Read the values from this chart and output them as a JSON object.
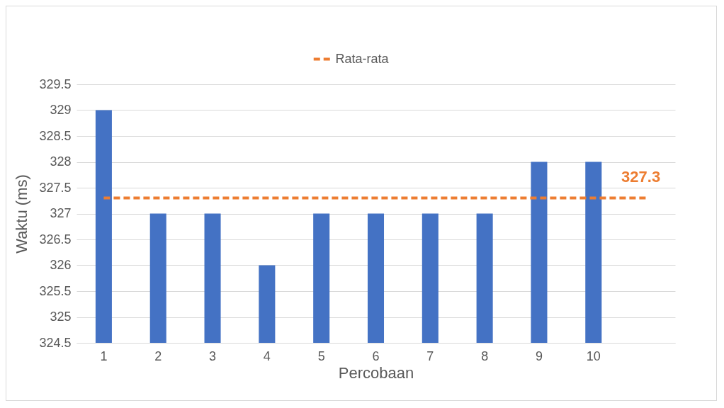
{
  "chart_data": {
    "type": "bar",
    "xlabel": "Percobaan",
    "ylabel": "Waktu (ms)",
    "categories": [
      "1",
      "2",
      "3",
      "4",
      "5",
      "6",
      "7",
      "8",
      "9",
      "10",
      null
    ],
    "series": [
      {
        "color": "#4472c4",
        "values": [
          329,
          327,
          327,
          326,
          327,
          327,
          327,
          327,
          328,
          328,
          null
        ]
      },
      {
        "type": "line",
        "name": "Rata-rata",
        "color": "#ed7d31",
        "line_style": "dashed",
        "values": [
          327.3,
          327.3,
          327.3,
          327.3,
          327.3,
          327.3,
          327.3,
          327.3,
          327.3,
          327.3,
          327.3
        ],
        "value_labels": [
          null,
          null,
          null,
          null,
          null,
          null,
          null,
          null,
          null,
          null,
          "327.3"
        ]
      }
    ],
    "ylim": [
      324.5,
      329.5
    ],
    "yticks": [
      324.5,
      325,
      325.5,
      326,
      326.5,
      327,
      327.5,
      328,
      328.5,
      329,
      329.5
    ],
    "grid": "y",
    "legend": "top",
    "marker": "none"
  }
}
